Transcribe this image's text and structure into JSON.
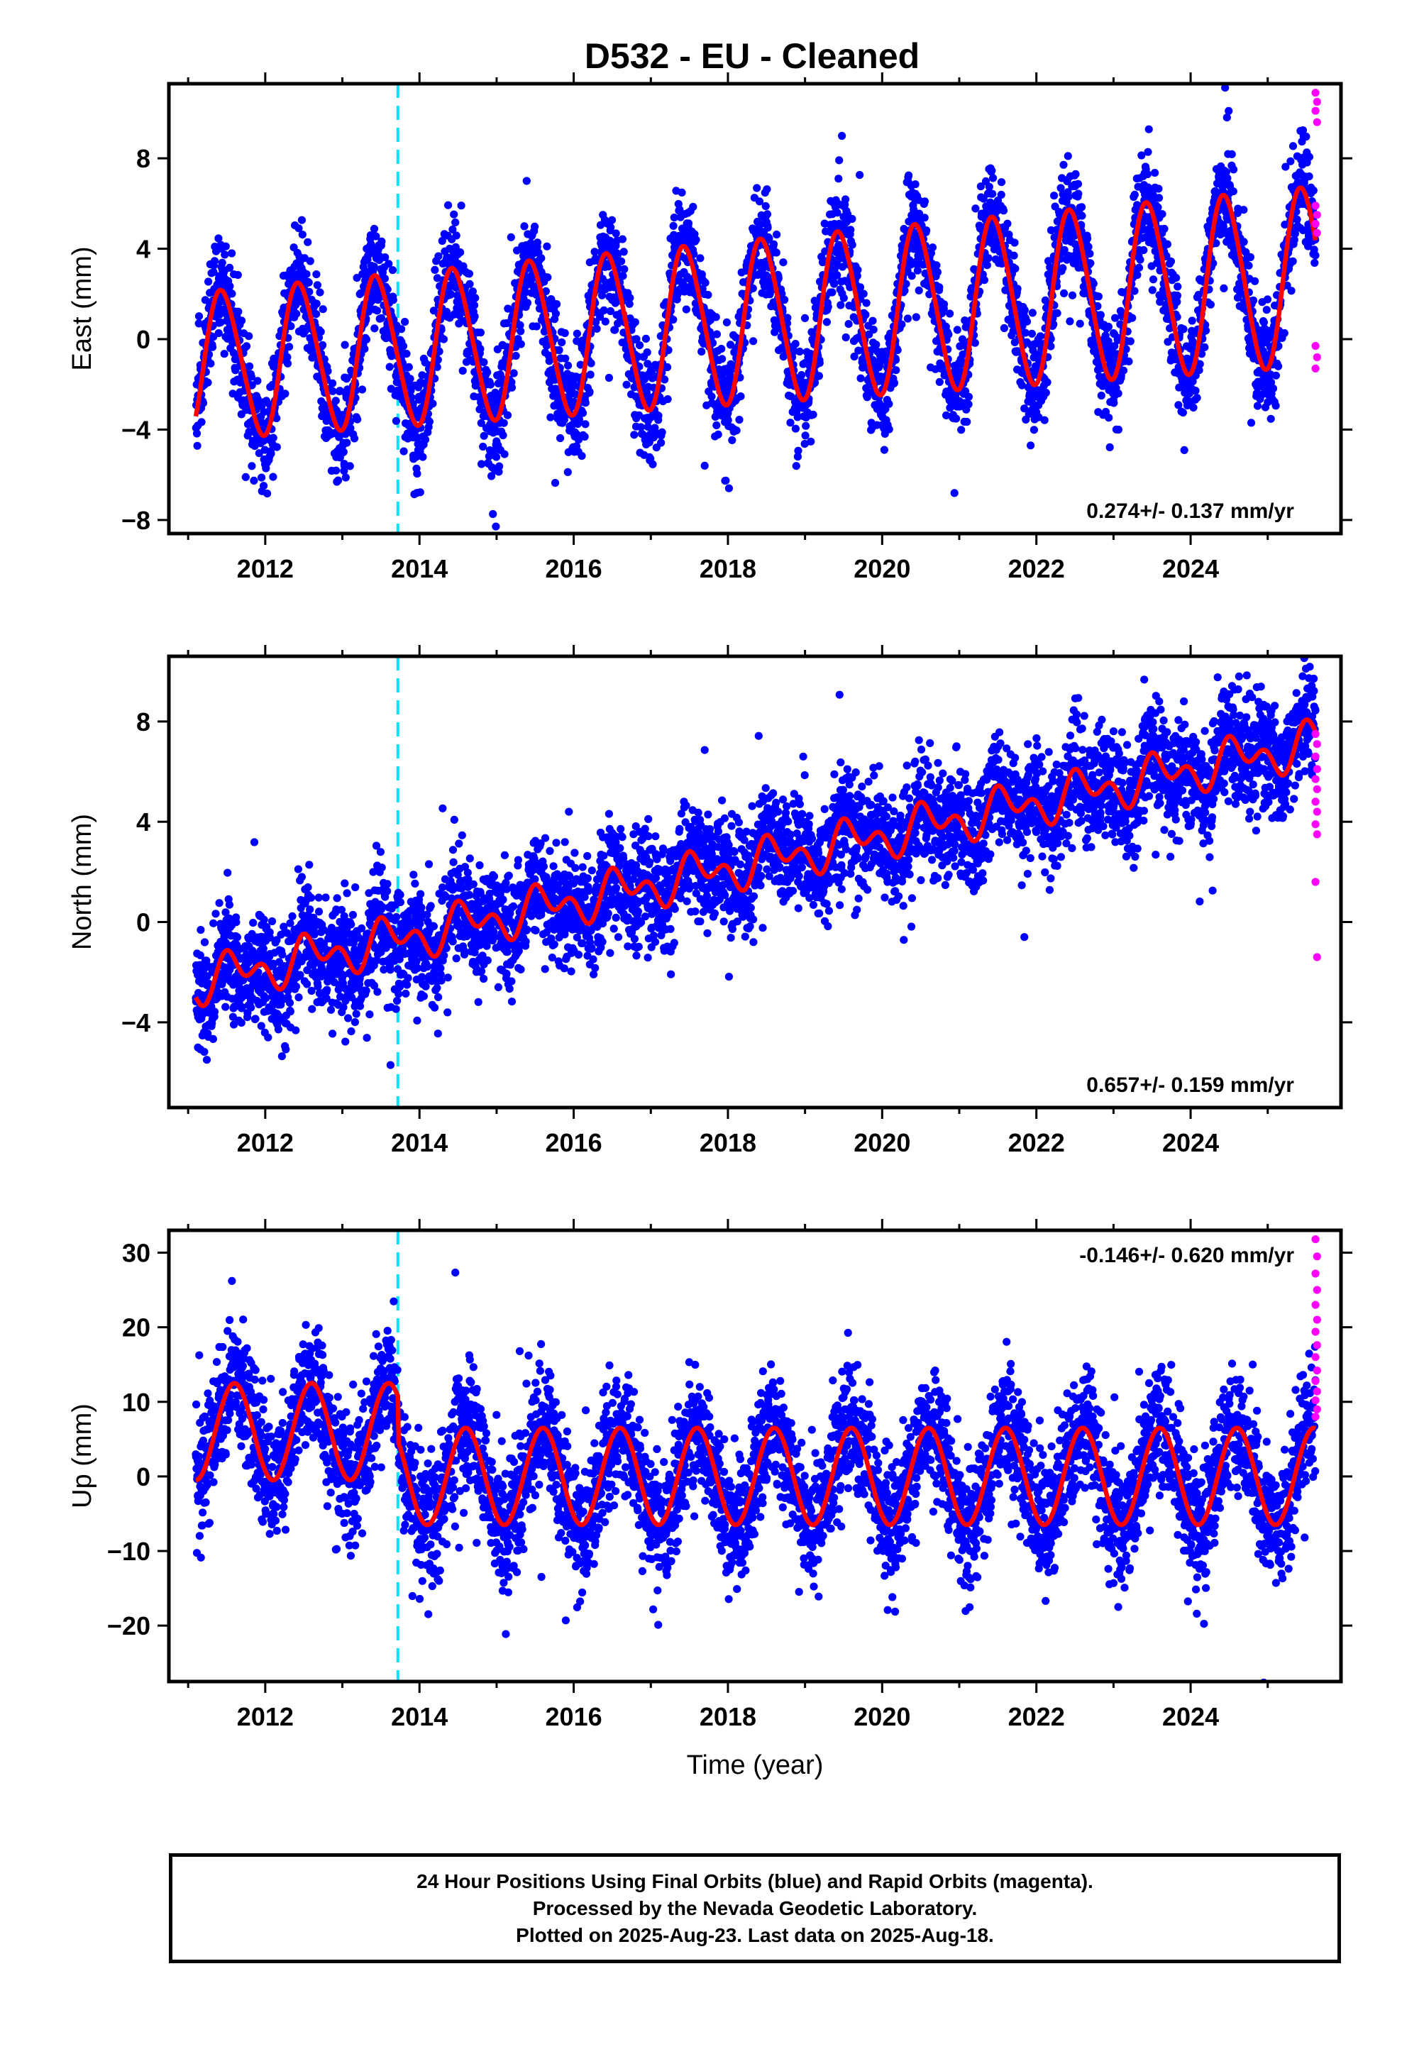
{
  "title": "D532  - EU - Cleaned",
  "chart_data": [
    {
      "type": "scatter",
      "ylabel": "East (mm)",
      "xlabel": "",
      "xlim": [
        2010.75,
        2025.95
      ],
      "ylim": [
        -8.6,
        11.3
      ],
      "yticks": [
        -8,
        -4,
        0,
        4,
        8
      ],
      "xticks": [
        2012,
        2014,
        2016,
        2018,
        2020,
        2022,
        2024
      ],
      "rate_label": "0.274+/- 0.137 mm/yr",
      "rate_position": "bottom-right",
      "event_line_x": 2013.72,
      "model": {
        "offset": -1.2,
        "trend": 0.274,
        "annual": 3.2,
        "annual_growth": 0.05,
        "semiannual": 0.35,
        "phase_year": 2011.2
      },
      "series": [
        {
          "name": "Final Orbits (blue)",
          "color": "#0000ff",
          "x_range": [
            2011.1,
            2025.62
          ],
          "scatter_sd": 1.2
        },
        {
          "name": "Rapid Orbits (magenta)",
          "color": "#ff00ff",
          "x_range": [
            2025.62,
            2025.64
          ],
          "y": [
            10.9,
            10.5,
            10.1,
            9.6,
            5.9,
            5.5,
            5.1,
            4.7,
            -0.3,
            -0.8,
            -1.3
          ]
        }
      ]
    },
    {
      "type": "scatter",
      "ylabel": "North (mm)",
      "xlabel": "",
      "xlim": [
        2010.75,
        2025.95
      ],
      "ylim": [
        -7.4,
        10.6
      ],
      "yticks": [
        -4,
        0,
        4,
        8
      ],
      "xticks": [
        2012,
        2014,
        2016,
        2018,
        2020,
        2022,
        2024
      ],
      "rate_label": "0.657+/- 0.159 mm/yr",
      "rate_position": "bottom-right",
      "event_line_x": 2013.72,
      "model": {
        "offset": -2.4,
        "trend": 0.657,
        "annual": 0.6,
        "semiannual": 0.55,
        "phase_year": 2011.35
      },
      "series": [
        {
          "name": "Final Orbits (blue)",
          "color": "#0000ff",
          "x_range": [
            2011.1,
            2025.62
          ],
          "scatter_sd": 1.1
        },
        {
          "name": "Rapid Orbits (magenta)",
          "color": "#ff00ff",
          "x_range": [
            2025.62,
            2025.64
          ],
          "y": [
            7.5,
            7.1,
            6.6,
            6.1,
            5.7,
            5.3,
            4.8,
            4.4,
            3.9,
            3.5,
            1.6,
            -1.4
          ]
        }
      ]
    },
    {
      "type": "scatter",
      "ylabel": "Up (mm)",
      "xlabel": "Time (year)",
      "xlim": [
        2010.75,
        2025.95
      ],
      "ylim": [
        -27.5,
        33.0
      ],
      "yticks": [
        -20,
        -10,
        0,
        10,
        20,
        30
      ],
      "xticks": [
        2012,
        2014,
        2016,
        2018,
        2020,
        2022,
        2024
      ],
      "rate_label": "-0.146+/- 0.620 mm/yr",
      "rate_position": "top-right",
      "event_line_x": 2013.72,
      "model_segments": [
        {
          "x_range": [
            2011.1,
            2013.72
          ],
          "offset": 6.0,
          "annual": 6.5,
          "phase_year": 2011.35
        },
        {
          "x_range": [
            2013.72,
            2025.62
          ],
          "offset": 0.0,
          "annual": 6.5,
          "phase_year": 2011.35
        }
      ],
      "series": [
        {
          "name": "Final Orbits (blue)",
          "color": "#0000ff",
          "x_range": [
            2011.1,
            2025.62
          ],
          "scatter_sd": 4.2
        },
        {
          "name": "Rapid Orbits (magenta)",
          "color": "#ff00ff",
          "x_range": [
            2025.62,
            2025.64
          ],
          "y": [
            31.8,
            29.5,
            27.2,
            25.0,
            23.0,
            21.0,
            19.4,
            17.6,
            16.0,
            14.2,
            12.8,
            11.4,
            10.2,
            9.0,
            8.0
          ]
        }
      ]
    }
  ],
  "caption": {
    "line1": "24 Hour Positions Using Final Orbits (blue) and Rapid Orbits (magenta).",
    "line2": "Processed by the Nevada Geodetic Laboratory.",
    "line3": "Plotted on 2025-Aug-23. Last data on 2025-Aug-18."
  }
}
